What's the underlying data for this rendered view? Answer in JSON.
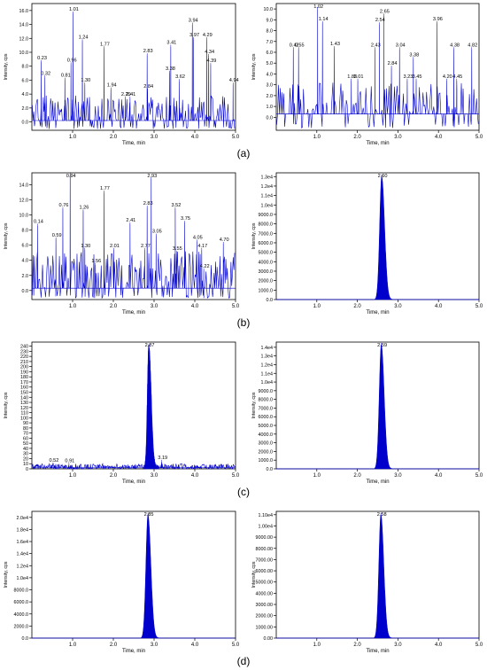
{
  "caption_labels": [
    "(a)",
    "(b)",
    "(c)",
    "(d)"
  ],
  "style": {
    "trace_color": "#0000cc",
    "axis_color": "#000000",
    "background": "#ffffff"
  },
  "chart_data": [
    {
      "id": "a-left",
      "type": "line",
      "xlabel": "Time, min",
      "ylabel": "Intensity, cps",
      "xlim": [
        0,
        5.0
      ],
      "ylim": [
        -1.2,
        17.0
      ],
      "xticks": [
        "1.0",
        "2.0",
        "3.0",
        "4.0",
        "5.0"
      ],
      "xtick_values": [
        1,
        2,
        3,
        4,
        5
      ],
      "yticks": [
        "0.0",
        "2.0",
        "4.0",
        "6.0",
        "8.0",
        "10.0",
        "12.0",
        "14.0",
        "16.0"
      ],
      "ytick_values": [
        0,
        2,
        4,
        6,
        8,
        10,
        12,
        14,
        16
      ],
      "noise": {
        "base": 0.2,
        "low": -1.0,
        "high": 3.8,
        "spacing": 0.018,
        "density": 0.7
      },
      "peaks": [
        {
          "label": "0.23",
          "x": 0.23,
          "y": 8.6
        },
        {
          "label": "0.32",
          "x": 0.32,
          "y": 6.4
        },
        {
          "label": "0.81",
          "x": 0.81,
          "y": 6.1
        },
        {
          "label": "0.96",
          "x": 0.96,
          "y": 8.3
        },
        {
          "label": "1.01",
          "x": 1.01,
          "y": 15.6
        },
        {
          "label": "1.24",
          "x": 1.24,
          "y": 11.6
        },
        {
          "label": "1.30",
          "x": 1.3,
          "y": 5.4
        },
        {
          "label": "1.77",
          "x": 1.77,
          "y": 10.6
        },
        {
          "label": "1.94",
          "x": 1.94,
          "y": 4.7
        },
        {
          "label": "2.29",
          "x": 2.29,
          "y": 3.4
        },
        {
          "label": "2.41",
          "x": 2.41,
          "y": 3.4
        },
        {
          "label": "2.84",
          "x": 2.84,
          "y": 4.5
        },
        {
          "label": "2.83",
          "x": 2.83,
          "y": 9.6
        },
        {
          "label": "3.41",
          "x": 3.41,
          "y": 10.8
        },
        {
          "label": "3.38",
          "x": 3.38,
          "y": 7.1
        },
        {
          "label": "3.62",
          "x": 3.62,
          "y": 5.9
        },
        {
          "label": "3.94",
          "x": 3.94,
          "y": 14.0
        },
        {
          "label": "3.97",
          "x": 3.97,
          "y": 11.9
        },
        {
          "label": "4.29",
          "x": 4.29,
          "y": 11.9
        },
        {
          "label": "4.34",
          "x": 4.34,
          "y": 9.5
        },
        {
          "label": "4.39",
          "x": 4.39,
          "y": 8.2
        },
        {
          "label": "4.94",
          "x": 4.94,
          "y": 5.4
        }
      ]
    },
    {
      "id": "a-right",
      "type": "line",
      "xlabel": "Time, min",
      "ylabel": "Intensity, cps",
      "xlim": [
        0,
        5.0
      ],
      "ylim": [
        -1.2,
        10.5
      ],
      "xticks": [
        "1.0",
        "2.0",
        "3.0",
        "4.0",
        "5.0"
      ],
      "xtick_values": [
        1,
        2,
        3,
        4,
        5
      ],
      "yticks": [
        "0.0",
        "1.0",
        "2.0",
        "3.0",
        "4.0",
        "5.0",
        "6.0",
        "7.0",
        "8.0",
        "9.0",
        "10.0"
      ],
      "ytick_values": [
        0,
        1,
        2,
        3,
        4,
        5,
        6,
        7,
        8,
        9,
        10
      ],
      "noise": {
        "base": 0.3,
        "low": -1.0,
        "high": 3.3,
        "spacing": 0.022,
        "density": 0.55
      },
      "peaks": [
        {
          "label": "0.42",
          "x": 0.42,
          "y": 6.3
        },
        {
          "label": "0.55",
          "x": 0.55,
          "y": 6.3
        },
        {
          "label": "1.02",
          "x": 1.02,
          "y": 10.0
        },
        {
          "label": "1.14",
          "x": 1.14,
          "y": 8.7
        },
        {
          "label": "1.43",
          "x": 1.43,
          "y": 6.4
        },
        {
          "label": "1.85",
          "x": 1.85,
          "y": 3.4
        },
        {
          "label": "2.01",
          "x": 2.01,
          "y": 3.4
        },
        {
          "label": "2.43",
          "x": 2.43,
          "y": 6.3
        },
        {
          "label": "2.54",
          "x": 2.54,
          "y": 8.6
        },
        {
          "label": "2.65",
          "x": 2.65,
          "y": 9.4
        },
        {
          "label": "2.84",
          "x": 2.84,
          "y": 4.6
        },
        {
          "label": "3.04",
          "x": 3.04,
          "y": 6.3
        },
        {
          "label": "3.23",
          "x": 3.23,
          "y": 3.4
        },
        {
          "label": "3.38",
          "x": 3.38,
          "y": 5.4
        },
        {
          "label": "3.45",
          "x": 3.45,
          "y": 3.4
        },
        {
          "label": "3.96",
          "x": 3.96,
          "y": 8.7
        },
        {
          "label": "4.20",
          "x": 4.2,
          "y": 3.4
        },
        {
          "label": "4.38",
          "x": 4.38,
          "y": 6.3
        },
        {
          "label": "4.45",
          "x": 4.45,
          "y": 3.4
        },
        {
          "label": "4.82",
          "x": 4.82,
          "y": 6.3
        }
      ]
    },
    {
      "id": "b-left",
      "type": "line",
      "xlabel": "Time, min",
      "ylabel": "Intensity, cps",
      "xlim": [
        0,
        5.0
      ],
      "ylim": [
        -1.2,
        15.6
      ],
      "xticks": [
        "1.0",
        "2.0",
        "3.0",
        "4.0",
        "5.0"
      ],
      "xtick_values": [
        1,
        2,
        3,
        4,
        5
      ],
      "yticks": [
        "0.0",
        "2.0",
        "4.0",
        "6.0",
        "8.0",
        "10.0",
        "12.0",
        "14.0"
      ],
      "ytick_values": [
        0,
        2,
        4,
        6,
        8,
        10,
        12,
        14
      ],
      "noise": {
        "base": 0.3,
        "low": -1.0,
        "high": 5.2,
        "spacing": 0.018,
        "density": 0.75
      },
      "peaks": [
        {
          "label": "0.14",
          "x": 0.14,
          "y": 8.6
        },
        {
          "label": "0.59",
          "x": 0.59,
          "y": 6.8
        },
        {
          "label": "0.76",
          "x": 0.76,
          "y": 10.8
        },
        {
          "label": "0.94",
          "x": 0.94,
          "y": 15.4
        },
        {
          "label": "1.26",
          "x": 1.26,
          "y": 10.5
        },
        {
          "label": "1.30",
          "x": 1.3,
          "y": 5.4
        },
        {
          "label": "1.56",
          "x": 1.56,
          "y": 3.4
        },
        {
          "label": "1.77",
          "x": 1.77,
          "y": 13.0
        },
        {
          "label": "2.01",
          "x": 2.01,
          "y": 5.4
        },
        {
          "label": "2.41",
          "x": 2.41,
          "y": 8.8
        },
        {
          "label": "2.77",
          "x": 2.77,
          "y": 5.4
        },
        {
          "label": "2.83",
          "x": 2.83,
          "y": 11.0
        },
        {
          "label": "2.93",
          "x": 2.93,
          "y": 14.8
        },
        {
          "label": "3.05",
          "x": 3.05,
          "y": 7.3
        },
        {
          "label": "3.55",
          "x": 3.55,
          "y": 5.0
        },
        {
          "label": "3.52",
          "x": 3.52,
          "y": 10.8
        },
        {
          "label": "3.75",
          "x": 3.75,
          "y": 9.0
        },
        {
          "label": "4.05",
          "x": 4.05,
          "y": 6.5
        },
        {
          "label": "4.17",
          "x": 4.17,
          "y": 5.4
        },
        {
          "label": "4.22",
          "x": 4.22,
          "y": 2.7
        },
        {
          "label": "4.70",
          "x": 4.7,
          "y": 6.2
        }
      ]
    },
    {
      "id": "b-right",
      "type": "area",
      "xlabel": "Time, min",
      "ylabel": "Intensity, cps",
      "xlim": [
        0,
        5.0
      ],
      "ylim": [
        0,
        13400
      ],
      "xticks": [
        "1.0",
        "2.0",
        "3.0",
        "4.0",
        "5.0"
      ],
      "xtick_values": [
        1,
        2,
        3,
        4,
        5
      ],
      "yticks": [
        "0.0",
        "1000.0",
        "2000.0",
        "3000.0",
        "4000.0",
        "5000.0",
        "6000.0",
        "7000.0",
        "8000.0",
        "9000.0",
        "1.0e4",
        "1.1e4",
        "1.2e4",
        "1.3e4"
      ],
      "ytick_values": [
        0,
        1000,
        2000,
        3000,
        4000,
        5000,
        6000,
        7000,
        8000,
        9000,
        10000,
        11000,
        12000,
        13000
      ],
      "peaks": [
        {
          "label": "2.60",
          "x": 2.6,
          "y": 13000,
          "sigma": 0.05,
          "tail": 0.07
        }
      ]
    },
    {
      "id": "c-left",
      "type": "line",
      "xlabel": "Time, min",
      "ylabel": "Intensity, cps",
      "xlim": [
        0,
        5.0
      ],
      "ylim": [
        0,
        248
      ],
      "xticks": [
        "1.0",
        "2.0",
        "3.0",
        "4.0",
        "5.0"
      ],
      "xtick_values": [
        1,
        2,
        3,
        4,
        5
      ],
      "yticks": [
        "0",
        "10",
        "20",
        "30",
        "40",
        "50",
        "60",
        "70",
        "80",
        "90",
        "100",
        "110",
        "120",
        "130",
        "140",
        "150",
        "160",
        "170",
        "180",
        "190",
        "200",
        "210",
        "220",
        "230",
        "240"
      ],
      "ytick_values": [
        0,
        10,
        20,
        30,
        40,
        50,
        60,
        70,
        80,
        90,
        100,
        110,
        120,
        130,
        140,
        150,
        160,
        170,
        180,
        190,
        200,
        210,
        220,
        230,
        240
      ],
      "noise": {
        "base": 2,
        "low": 0,
        "high": 10,
        "spacing": 0.012,
        "density": 0.9
      },
      "peaks": [
        {
          "label": "0.52",
          "x": 0.52,
          "y": 9,
          "sigma": 0.01,
          "tail": 0.01
        },
        {
          "label": "0.91",
          "x": 0.91,
          "y": 8,
          "sigma": 0.01,
          "tail": 0.01
        },
        {
          "label": "2.87",
          "x": 2.87,
          "y": 240,
          "sigma": 0.035,
          "tail": 0.06
        },
        {
          "label": "3.19",
          "x": 3.19,
          "y": 14,
          "sigma": 0.01,
          "tail": 0.01
        }
      ]
    },
    {
      "id": "c-right",
      "type": "area",
      "xlabel": "Time, min",
      "ylabel": "Intensity, cps",
      "xlim": [
        0,
        5.0
      ],
      "ylim": [
        0,
        14600
      ],
      "xticks": [
        "1.0",
        "2.0",
        "3.0",
        "4.0",
        "5.0"
      ],
      "xtick_values": [
        1,
        2,
        3,
        4,
        5
      ],
      "yticks": [
        "0.0",
        "1000.0",
        "2000.0",
        "3000.0",
        "4000.0",
        "5000.0",
        "6000.0",
        "7000.0",
        "8000.0",
        "9000.0",
        "1.0e4",
        "1.1e4",
        "1.2e4",
        "1.3e4",
        "1.4e4"
      ],
      "ytick_values": [
        0,
        1000,
        2000,
        3000,
        4000,
        5000,
        6000,
        7000,
        8000,
        9000,
        10000,
        11000,
        12000,
        13000,
        14000
      ],
      "peaks": [
        {
          "label": "2.59",
          "x": 2.59,
          "y": 14300,
          "sigma": 0.05,
          "tail": 0.07
        }
      ]
    },
    {
      "id": "d-left",
      "type": "area",
      "xlabel": "Time, min",
      "ylabel": "Intensity, cps",
      "xlim": [
        0,
        5.0
      ],
      "ylim": [
        0,
        21000
      ],
      "xticks": [
        "1.0",
        "2.0",
        "3.0",
        "4.0",
        "5.0"
      ],
      "xtick_values": [
        1,
        2,
        3,
        4,
        5
      ],
      "yticks": [
        "0.0",
        "2000.0",
        "4000.0",
        "6000.0",
        "8000.0",
        "1.0e4",
        "1.2e4",
        "1.4e4",
        "1.6e4",
        "1.8e4",
        "2.0e4"
      ],
      "ytick_values": [
        0,
        2000,
        4000,
        6000,
        8000,
        10000,
        12000,
        14000,
        16000,
        18000,
        20000
      ],
      "peaks": [
        {
          "label": "2.85",
          "x": 2.85,
          "y": 20400,
          "sigma": 0.05,
          "tail": 0.07
        }
      ]
    },
    {
      "id": "d-right",
      "type": "area",
      "xlabel": "Time, min",
      "ylabel": "Intensity, cps",
      "xlim": [
        0,
        5.0
      ],
      "ylim": [
        0,
        11300
      ],
      "xticks": [
        "1.0",
        "2.0",
        "3.0",
        "4.0",
        "5.0"
      ],
      "xtick_values": [
        1,
        2,
        3,
        4,
        5
      ],
      "yticks": [
        "0.00",
        "1000.00",
        "2000.00",
        "3000.00",
        "4000.00",
        "5000.00",
        "6000.00",
        "7000.00",
        "8000.00",
        "9000.00",
        "1.00e4",
        "1.10e4"
      ],
      "ytick_values": [
        0,
        1000,
        2000,
        3000,
        4000,
        5000,
        6000,
        7000,
        8000,
        9000,
        10000,
        11000
      ],
      "peaks": [
        {
          "label": "2.58",
          "x": 2.58,
          "y": 11000,
          "sigma": 0.05,
          "tail": 0.07
        }
      ]
    }
  ]
}
